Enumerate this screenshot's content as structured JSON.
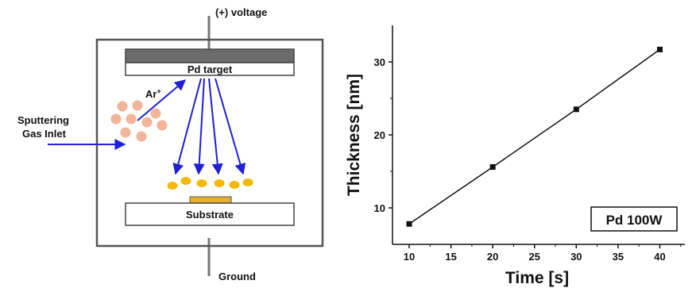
{
  "diagram": {
    "voltage_label": "(+) voltage",
    "ground_label": "Ground",
    "target_label": "Pd target",
    "substrate_label": "Substrate",
    "ion_label": "Ar",
    "ion_superscript": "+",
    "inlet_label_line1": "Sputtering",
    "inlet_label_line2": "Gas Inlet",
    "colors": {
      "argon_particles": "#f2b49a",
      "pd_atoms": "#f5b800",
      "arrows": "#1f1fd6",
      "target_plate": "#6b6b6b",
      "substrate_film": "#e8b030",
      "chamber_wall": "#555555"
    }
  },
  "chart_data": {
    "type": "line",
    "x": [
      10,
      20,
      30,
      40
    ],
    "y": [
      7.8,
      15.6,
      23.5,
      31.7
    ],
    "xlabel": "Time [s]",
    "ylabel": "Thickness [nm]",
    "xlim": [
      8,
      43
    ],
    "ylim": [
      5,
      35
    ],
    "xticks": [
      10,
      15,
      20,
      25,
      30,
      35,
      40
    ],
    "yticks": [
      10,
      20,
      30
    ],
    "legend_box": "Pd 100W",
    "legend_placement": "bottom-right",
    "marker": "square",
    "grid": false
  }
}
